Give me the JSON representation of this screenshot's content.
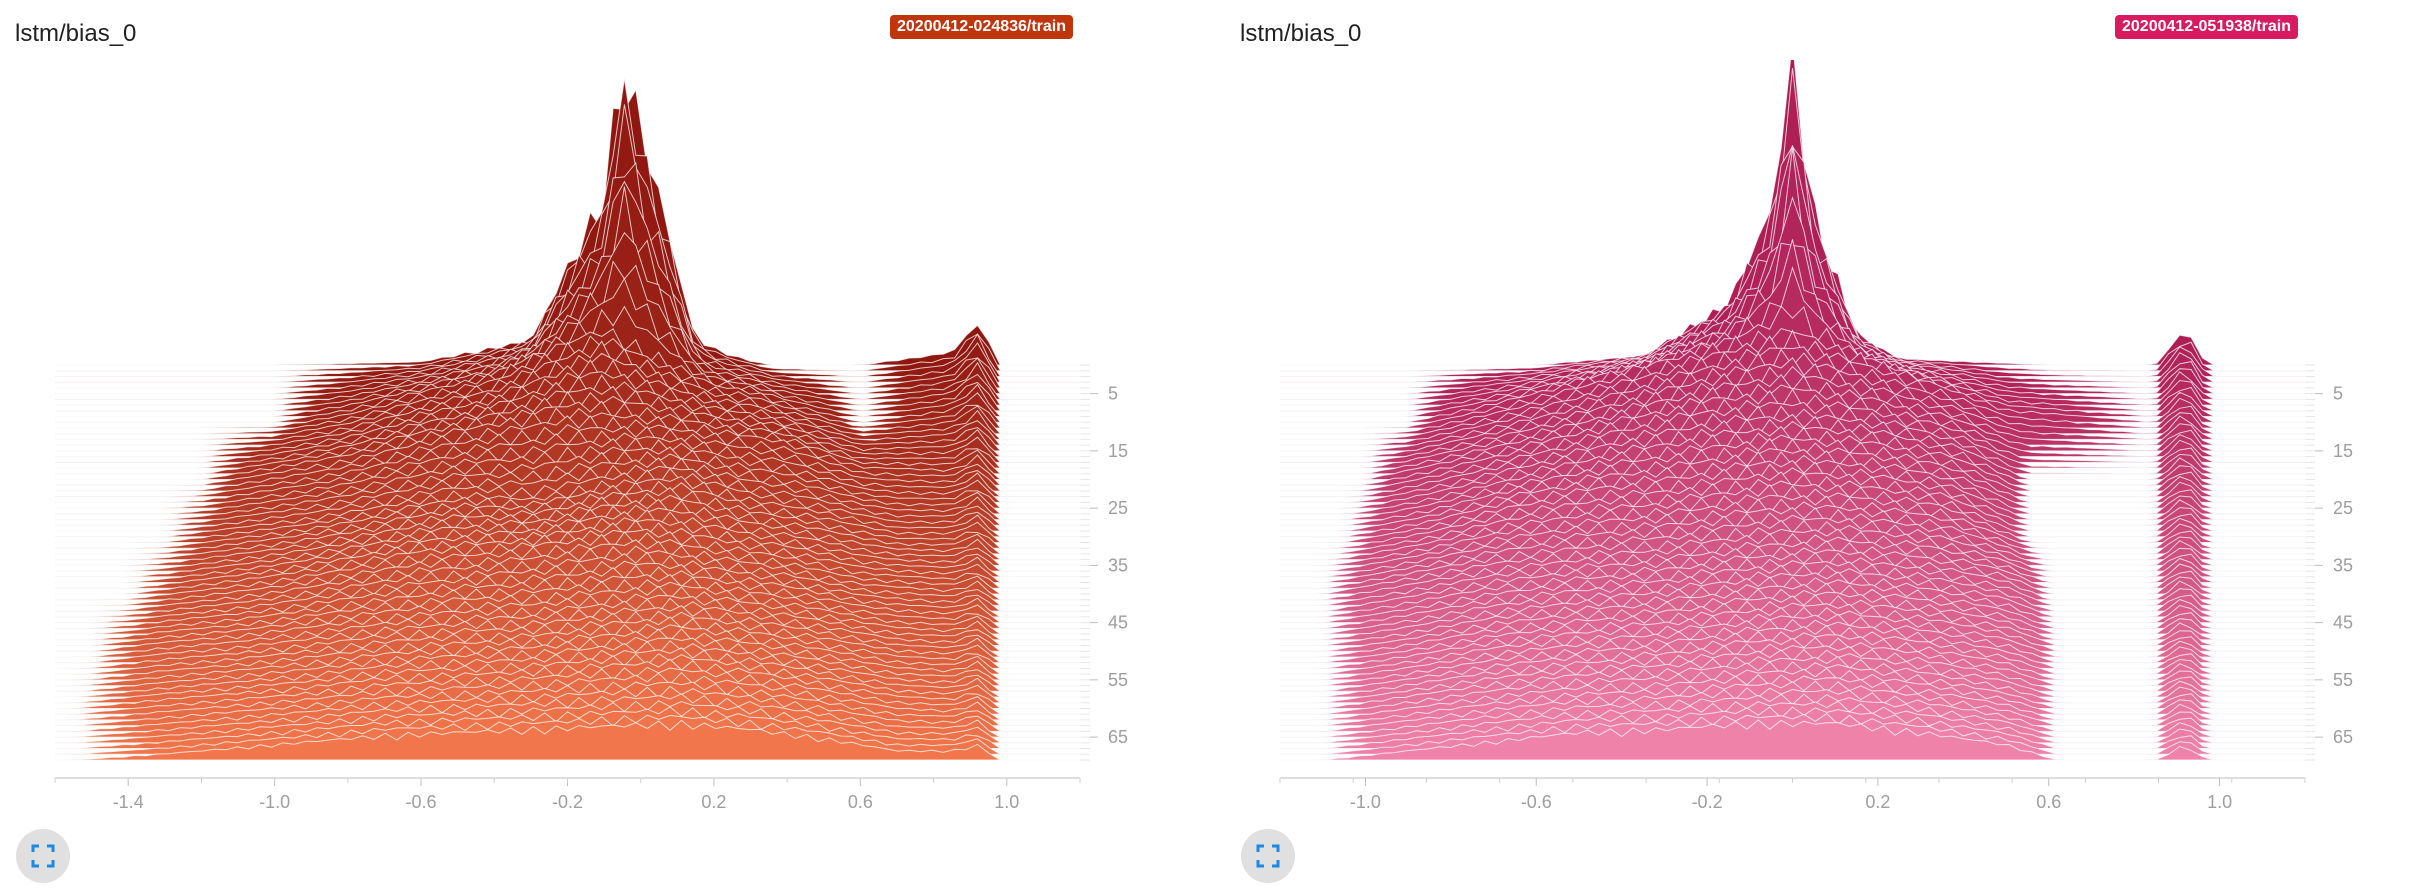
{
  "panels": [
    {
      "title": "lstm/bias_0",
      "run": "20200412-024836/train",
      "badge_color": "#bf360c",
      "color_back": "#8f1710",
      "color_front": "#f2764b",
      "expand_icon": "fullscreen-icon"
    },
    {
      "title": "lstm/bias_0",
      "run": "20200412-051938/train",
      "badge_color": "#d81b60",
      "color_back": "#ad1e55",
      "color_front": "#ef82a8",
      "expand_icon": "fullscreen-icon"
    }
  ],
  "chart_data": [
    {
      "type": "area",
      "subtype": "histogram-offset",
      "title": "lstm/bias_0",
      "x_ticks": [
        "-1.4",
        "-1.0",
        "-0.6",
        "-0.2",
        "0.2",
        "0.6",
        "1.0"
      ],
      "xlim": [
        -1.6,
        1.2
      ],
      "y_ticks": [
        "5",
        "15",
        "25",
        "35",
        "45",
        "55",
        "65"
      ],
      "steps": [
        0,
        69
      ],
      "histograms": [
        {
          "step": 0,
          "x": [
            -1.0,
            -0.6,
            -0.3,
            -0.1,
            -0.05,
            0.05,
            0.15,
            0.25,
            0.35,
            0.6,
            0.85,
            0.93,
            0.97
          ],
          "y": [
            0,
            0.01,
            0.08,
            0.55,
            1.0,
            0.55,
            0.08,
            0.03,
            0.0,
            0,
            0.04,
            0.15,
            0.0
          ]
        },
        {
          "step": 10,
          "x": [
            -1.0,
            -0.8,
            -0.6,
            -0.4,
            -0.2,
            -0.1,
            0.0,
            0.1,
            0.2,
            0.3,
            0.4,
            0.6,
            0.85,
            0.93,
            0.97
          ],
          "y": [
            0,
            0.04,
            0.1,
            0.15,
            0.26,
            0.3,
            0.24,
            0.18,
            0.12,
            0.1,
            0.06,
            0,
            0.04,
            0.1,
            0.0
          ]
        },
        {
          "step": 20,
          "x": [
            -1.2,
            -1.0,
            -0.8,
            -0.6,
            -0.4,
            -0.2,
            0.0,
            0.2,
            0.4,
            0.6,
            0.85,
            0.93,
            0.97
          ],
          "y": [
            0,
            0.04,
            0.08,
            0.14,
            0.18,
            0.22,
            0.2,
            0.16,
            0.12,
            0.04,
            0.03,
            0.08,
            0.0
          ]
        },
        {
          "step": 30,
          "x": [
            -1.3,
            -1.1,
            -0.9,
            -0.7,
            -0.5,
            -0.3,
            -0.1,
            0.1,
            0.3,
            0.5,
            0.7,
            0.85,
            0.93,
            0.97
          ],
          "y": [
            0,
            0.03,
            0.06,
            0.1,
            0.14,
            0.12,
            0.17,
            0.19,
            0.12,
            0.08,
            0.03,
            0.03,
            0.07,
            0.0
          ]
        },
        {
          "step": 40,
          "x": [
            -1.4,
            -1.2,
            -1.0,
            -0.8,
            -0.6,
            -0.4,
            -0.2,
            0.0,
            0.2,
            0.4,
            0.6,
            0.85,
            0.93,
            0.97
          ],
          "y": [
            0,
            0.03,
            0.06,
            0.1,
            0.14,
            0.15,
            0.17,
            0.19,
            0.14,
            0.1,
            0.05,
            0.03,
            0.06,
            0.0
          ]
        },
        {
          "step": 50,
          "x": [
            -1.5,
            -1.3,
            -1.1,
            -0.9,
            -0.7,
            -0.5,
            -0.3,
            -0.1,
            0.1,
            0.3,
            0.5,
            0.7,
            0.85,
            0.93,
            0.97
          ],
          "y": [
            0,
            0.03,
            0.05,
            0.08,
            0.11,
            0.13,
            0.13,
            0.15,
            0.16,
            0.12,
            0.08,
            0.04,
            0.03,
            0.06,
            0.0
          ]
        },
        {
          "step": 60,
          "x": [
            -1.55,
            -1.3,
            -1.1,
            -0.9,
            -0.7,
            -0.5,
            -0.3,
            -0.1,
            0.1,
            0.3,
            0.5,
            0.7,
            0.85,
            0.93,
            0.97
          ],
          "y": [
            0,
            0.03,
            0.05,
            0.07,
            0.1,
            0.11,
            0.12,
            0.14,
            0.15,
            0.12,
            0.08,
            0.04,
            0.03,
            0.06,
            0.0
          ]
        },
        {
          "step": 69,
          "x": [
            -1.55,
            -1.3,
            -1.1,
            -0.9,
            -0.7,
            -0.5,
            -0.3,
            -0.1,
            0.1,
            0.3,
            0.5,
            0.7,
            0.85,
            0.93,
            0.97
          ],
          "y": [
            0,
            0.02,
            0.04,
            0.06,
            0.08,
            0.09,
            0.1,
            0.11,
            0.12,
            0.1,
            0.07,
            0.03,
            0.03,
            0.05,
            0.0
          ]
        }
      ]
    },
    {
      "type": "area",
      "subtype": "histogram-offset",
      "title": "lstm/bias_0",
      "x_ticks": [
        "-1.0",
        "-0.6",
        "-0.2",
        "0.2",
        "0.6",
        "1.0"
      ],
      "xlim": [
        -1.2,
        1.2
      ],
      "y_ticks": [
        "5",
        "15",
        "25",
        "35",
        "45",
        "55",
        "65"
      ],
      "steps": [
        0,
        69
      ],
      "histograms": [
        {
          "step": 0,
          "x": [
            -0.6,
            -0.35,
            -0.15,
            -0.05,
            0.0,
            0.05,
            0.15,
            0.25,
            0.6,
            0.85,
            0.92,
            0.97
          ],
          "y": [
            0,
            0.03,
            0.2,
            0.5,
            1.0,
            0.5,
            0.1,
            0.02,
            0,
            0.0,
            0.12,
            0.0
          ]
        },
        {
          "step": 10,
          "x": [
            -0.9,
            -0.7,
            -0.5,
            -0.3,
            -0.1,
            0.0,
            0.1,
            0.3,
            0.5,
            0.85,
            0.92,
            0.97
          ],
          "y": [
            0,
            0.06,
            0.13,
            0.2,
            0.27,
            0.3,
            0.24,
            0.14,
            0.04,
            0.0,
            0.09,
            0.0
          ]
        },
        {
          "step": 20,
          "x": [
            -1.0,
            -0.8,
            -0.6,
            -0.4,
            -0.2,
            0.0,
            0.2,
            0.4,
            0.55,
            0.85,
            0.92,
            0.97
          ],
          "y": [
            0,
            0.06,
            0.12,
            0.18,
            0.22,
            0.22,
            0.18,
            0.1,
            0.0,
            0.0,
            0.08,
            0.0
          ]
        },
        {
          "step": 30,
          "x": [
            -1.05,
            -0.85,
            -0.65,
            -0.45,
            -0.25,
            -0.05,
            0.15,
            0.35,
            0.55,
            0.85,
            0.92,
            0.97
          ],
          "y": [
            0,
            0.05,
            0.12,
            0.16,
            0.17,
            0.2,
            0.17,
            0.12,
            0.0,
            0.0,
            0.07,
            0.0
          ]
        },
        {
          "step": 40,
          "x": [
            -1.1,
            -0.9,
            -0.7,
            -0.5,
            -0.3,
            -0.1,
            0.1,
            0.3,
            0.5,
            0.6,
            0.85,
            0.92,
            0.97
          ],
          "y": [
            0,
            0.05,
            0.1,
            0.13,
            0.14,
            0.16,
            0.16,
            0.12,
            0.06,
            0.0,
            0.0,
            0.07,
            0.0
          ]
        },
        {
          "step": 50,
          "x": [
            -1.1,
            -0.9,
            -0.7,
            -0.5,
            -0.3,
            -0.1,
            0.1,
            0.3,
            0.5,
            0.62,
            0.85,
            0.92,
            0.97
          ],
          "y": [
            0,
            0.04,
            0.09,
            0.12,
            0.13,
            0.15,
            0.15,
            0.11,
            0.06,
            0.0,
            0.0,
            0.06,
            0.0
          ]
        },
        {
          "step": 60,
          "x": [
            -1.1,
            -0.9,
            -0.7,
            -0.5,
            -0.3,
            -0.1,
            0.1,
            0.3,
            0.5,
            0.62,
            0.85,
            0.92,
            0.97
          ],
          "y": [
            0,
            0.04,
            0.08,
            0.11,
            0.12,
            0.14,
            0.14,
            0.1,
            0.05,
            0.0,
            0.0,
            0.06,
            0.0
          ]
        },
        {
          "step": 69,
          "x": [
            -1.1,
            -0.9,
            -0.7,
            -0.5,
            -0.3,
            -0.1,
            0.1,
            0.3,
            0.5,
            0.62,
            0.85,
            0.92,
            0.97
          ],
          "y": [
            0,
            0.03,
            0.06,
            0.09,
            0.1,
            0.12,
            0.12,
            0.09,
            0.05,
            0.0,
            0.0,
            0.05,
            0.0
          ]
        }
      ]
    }
  ]
}
